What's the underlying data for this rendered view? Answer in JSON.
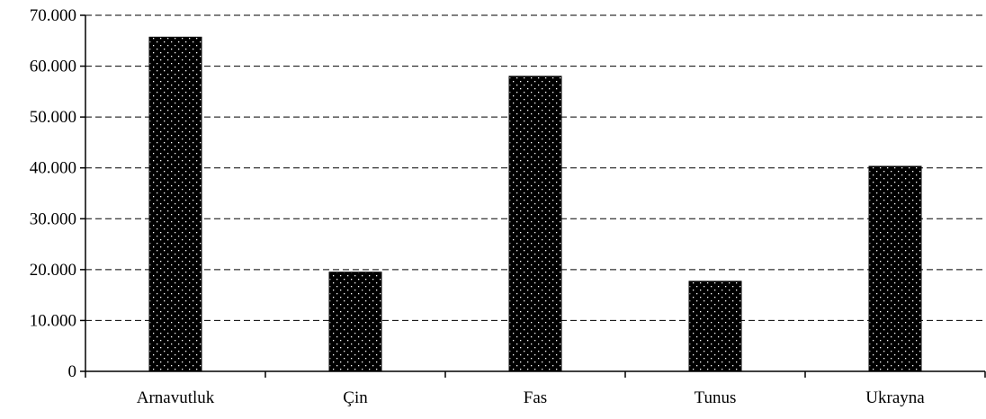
{
  "chart_data": {
    "type": "bar",
    "categories": [
      "Arnavutluk",
      "Çin",
      "Fas",
      "Tunus",
      "Ukrayna"
    ],
    "values": [
      65700,
      19500,
      58000,
      17700,
      40300
    ],
    "y_tick_labels": [
      "0",
      "10.000",
      "20.000",
      "30.000",
      "40.000",
      "50.000",
      "60.000",
      "70.000"
    ],
    "ylim": [
      0,
      70000
    ],
    "y_tick_step": 10000,
    "grid": true,
    "legend": "none",
    "bar_pattern": "dotted-black"
  }
}
